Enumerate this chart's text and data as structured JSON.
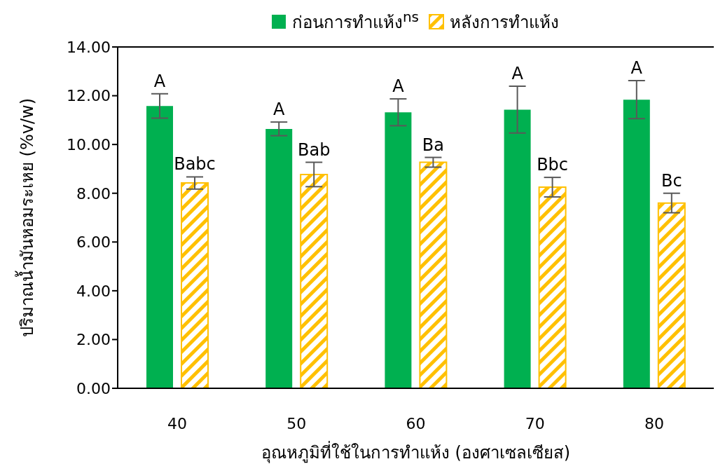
{
  "chart_data": {
    "type": "bar",
    "xlabel": "อุณหภูมิที่ใช้ในการทำแห้ง (องศาเซลเซียส)",
    "ylabel": "ปริมาณน้ำมันหอมระเหย (%v/w)",
    "categories": [
      "40",
      "50",
      "60",
      "70",
      "80"
    ],
    "series": [
      {
        "name": "ก่อนการทำแห้ง$^{ns}$",
        "color": "#00b050",
        "values": [
          11.58,
          10.64,
          11.32,
          11.43,
          11.84
        ],
        "errors": [
          0.5,
          0.28,
          0.55,
          0.96,
          0.78
        ]
      },
      {
        "name": "หลังการทำแห้ง",
        "color": "#ffc000",
        "values": [
          8.42,
          8.77,
          9.27,
          8.25,
          7.6
        ],
        "errors": [
          0.25,
          0.5,
          0.2,
          0.4,
          0.4
        ]
      }
    ],
    "ylim": [
      0,
      14
    ],
    "yticks": [
      {
        "value": 0,
        "label": "0.00"
      },
      {
        "value": 2,
        "label": "2.00"
      },
      {
        "value": 4,
        "label": "4.00"
      },
      {
        "value": 6,
        "label": "6.00"
      },
      {
        "value": 8,
        "label": "8.00"
      },
      {
        "value": 10,
        "label": "10.00"
      },
      {
        "value": 12,
        "label": "12.00"
      },
      {
        "value": 14,
        "label": "14.00"
      }
    ],
    "grid": false,
    "legend": "top",
    "annotations": [
      "A",
      "Babc",
      "A",
      "Bab",
      "A",
      "Ba",
      "A",
      "Bbc",
      "A",
      "Bc"
    ]
  }
}
